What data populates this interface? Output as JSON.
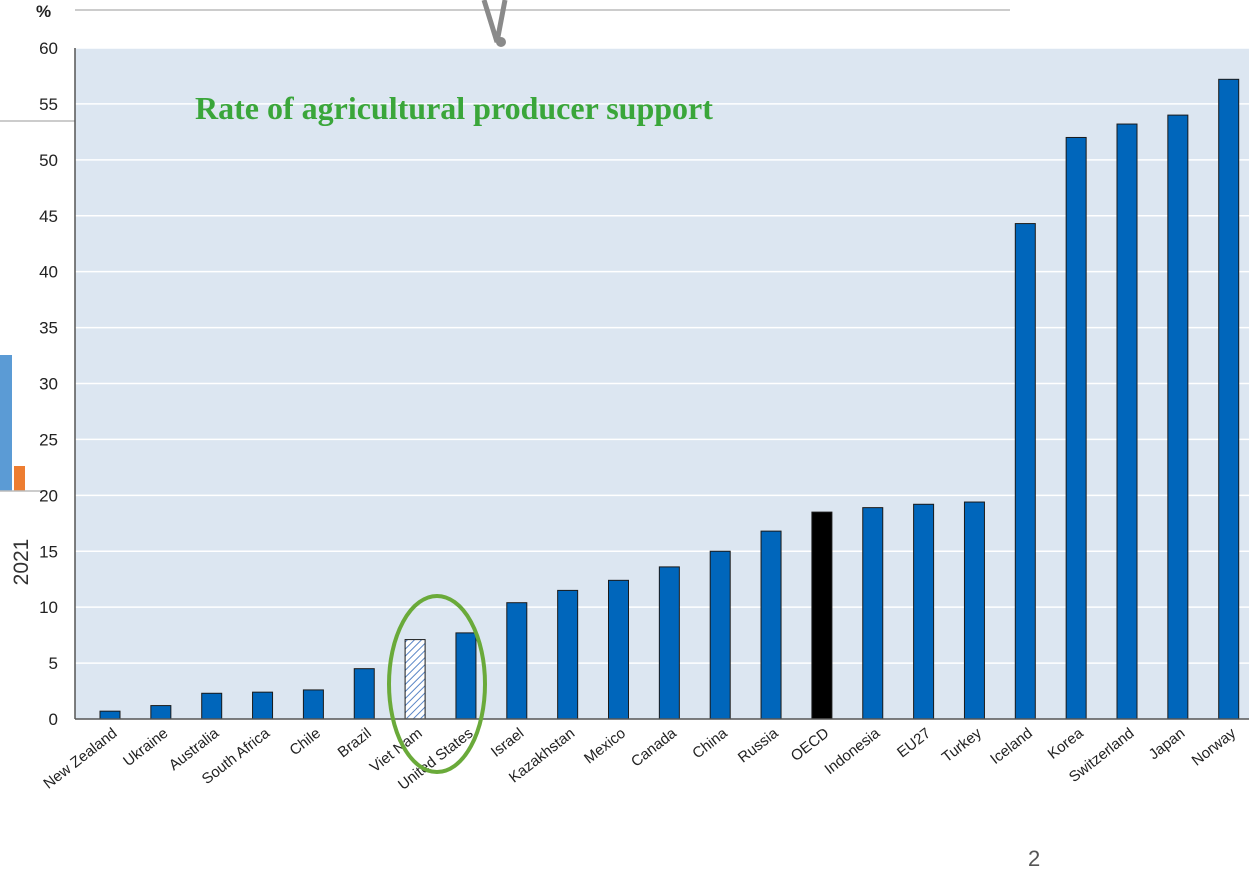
{
  "chart_data": {
    "type": "bar",
    "title": "Rate of agricultural producer support",
    "ylabel": "%",
    "ylim": [
      0,
      60
    ],
    "yticks": [
      "0",
      "5",
      "10",
      "15",
      "20",
      "25",
      "30",
      "35",
      "40",
      "45",
      "50",
      "55",
      "60"
    ],
    "categories": [
      "New Zealand",
      "Ukraine",
      "Australia",
      "South Africa",
      "Chile",
      "Brazil",
      "Viet Nam",
      "United States",
      "Israel",
      "Kazakhstan",
      "Mexico",
      "Canada",
      "China",
      "Russia",
      "OECD",
      "Indonesia",
      "EU27",
      "Turkey",
      "Iceland",
      "Korea",
      "Switzerland",
      "Japan",
      "Norway"
    ],
    "values": [
      0.7,
      1.2,
      2.3,
      2.4,
      2.6,
      4.5,
      7.1,
      7.7,
      10.4,
      11.5,
      12.4,
      13.6,
      15.0,
      16.8,
      18.5,
      18.9,
      19.2,
      19.4,
      44.3,
      52.0,
      53.2,
      54.0,
      57.2
    ],
    "highlight": {
      "Viet Nam": "hatched",
      "OECD": "black"
    },
    "circled": [
      "Viet Nam",
      "United States"
    ],
    "colors": {
      "bar": "#0066bb",
      "oecd": "#000000",
      "hatch": "#5a86c6",
      "plot_bg": "#dce6f1",
      "grid": "#ffffff",
      "circle": "#6aaa3a",
      "title": "#3aa63a"
    }
  },
  "side_label": "2021",
  "page_number": "2"
}
